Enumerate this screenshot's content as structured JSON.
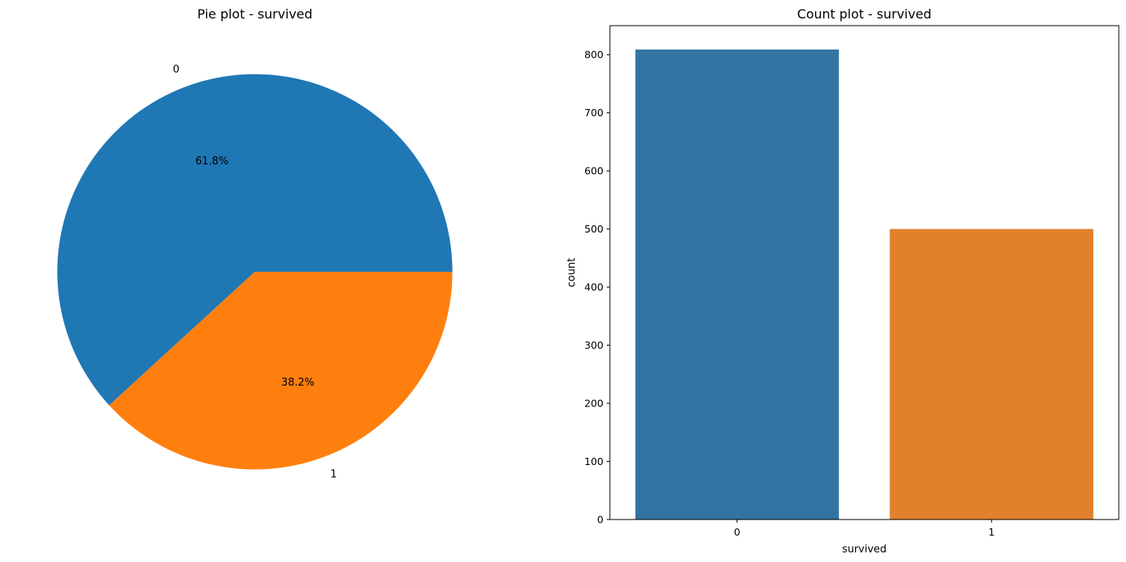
{
  "chart_data": [
    {
      "type": "pie",
      "title": "Pie plot - survived",
      "labels": [
        "0",
        "1"
      ],
      "values": [
        61.8,
        38.2
      ],
      "autopct_labels": [
        "61.8%",
        "38.2%"
      ],
      "colors": [
        "#1f77b4",
        "#ff7f0e"
      ],
      "startangle": 0,
      "direction": "counterclockwise"
    },
    {
      "type": "bar",
      "title": "Count plot - survived",
      "categories": [
        "0",
        "1"
      ],
      "values": [
        809,
        500
      ],
      "colors": [
        "#3274a1",
        "#e1812c"
      ],
      "xlabel": "survived",
      "ylabel": "count",
      "ylim": [
        0,
        850
      ],
      "yticks": [
        0,
        100,
        200,
        300,
        400,
        500,
        600,
        700,
        800
      ],
      "grid": false
    }
  ]
}
